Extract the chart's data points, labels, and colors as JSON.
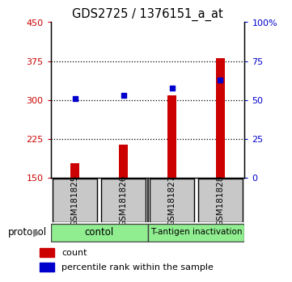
{
  "title": "GDS2725 / 1376151_a_at",
  "samples": [
    "GSM181825",
    "GSM181826",
    "GSM181827",
    "GSM181828"
  ],
  "count_values": [
    178,
    215,
    310,
    380
  ],
  "percentile_values": [
    51,
    53,
    58,
    63
  ],
  "groups": [
    {
      "label": "contol",
      "color": "#90EE90"
    },
    {
      "label": "T-antigen inactivation",
      "color": "#90EE90"
    }
  ],
  "ylim_left": [
    150,
    450
  ],
  "ylim_right": [
    0,
    100
  ],
  "yticks_left": [
    150,
    225,
    300,
    375,
    450
  ],
  "yticks_right": [
    0,
    25,
    50,
    75,
    100
  ],
  "ytick_labels_right": [
    "0",
    "25",
    "50",
    "75",
    "100%"
  ],
  "bar_color": "#CC0000",
  "dot_color": "#0000CC",
  "bar_width": 0.18,
  "background_color": "#ffffff",
  "label_box_color": "#C8C8C8",
  "legend_count_label": "count",
  "legend_percentile_label": "percentile rank within the sample",
  "protocol_label": "protocol",
  "grid_yticks": [
    225,
    300,
    375
  ]
}
